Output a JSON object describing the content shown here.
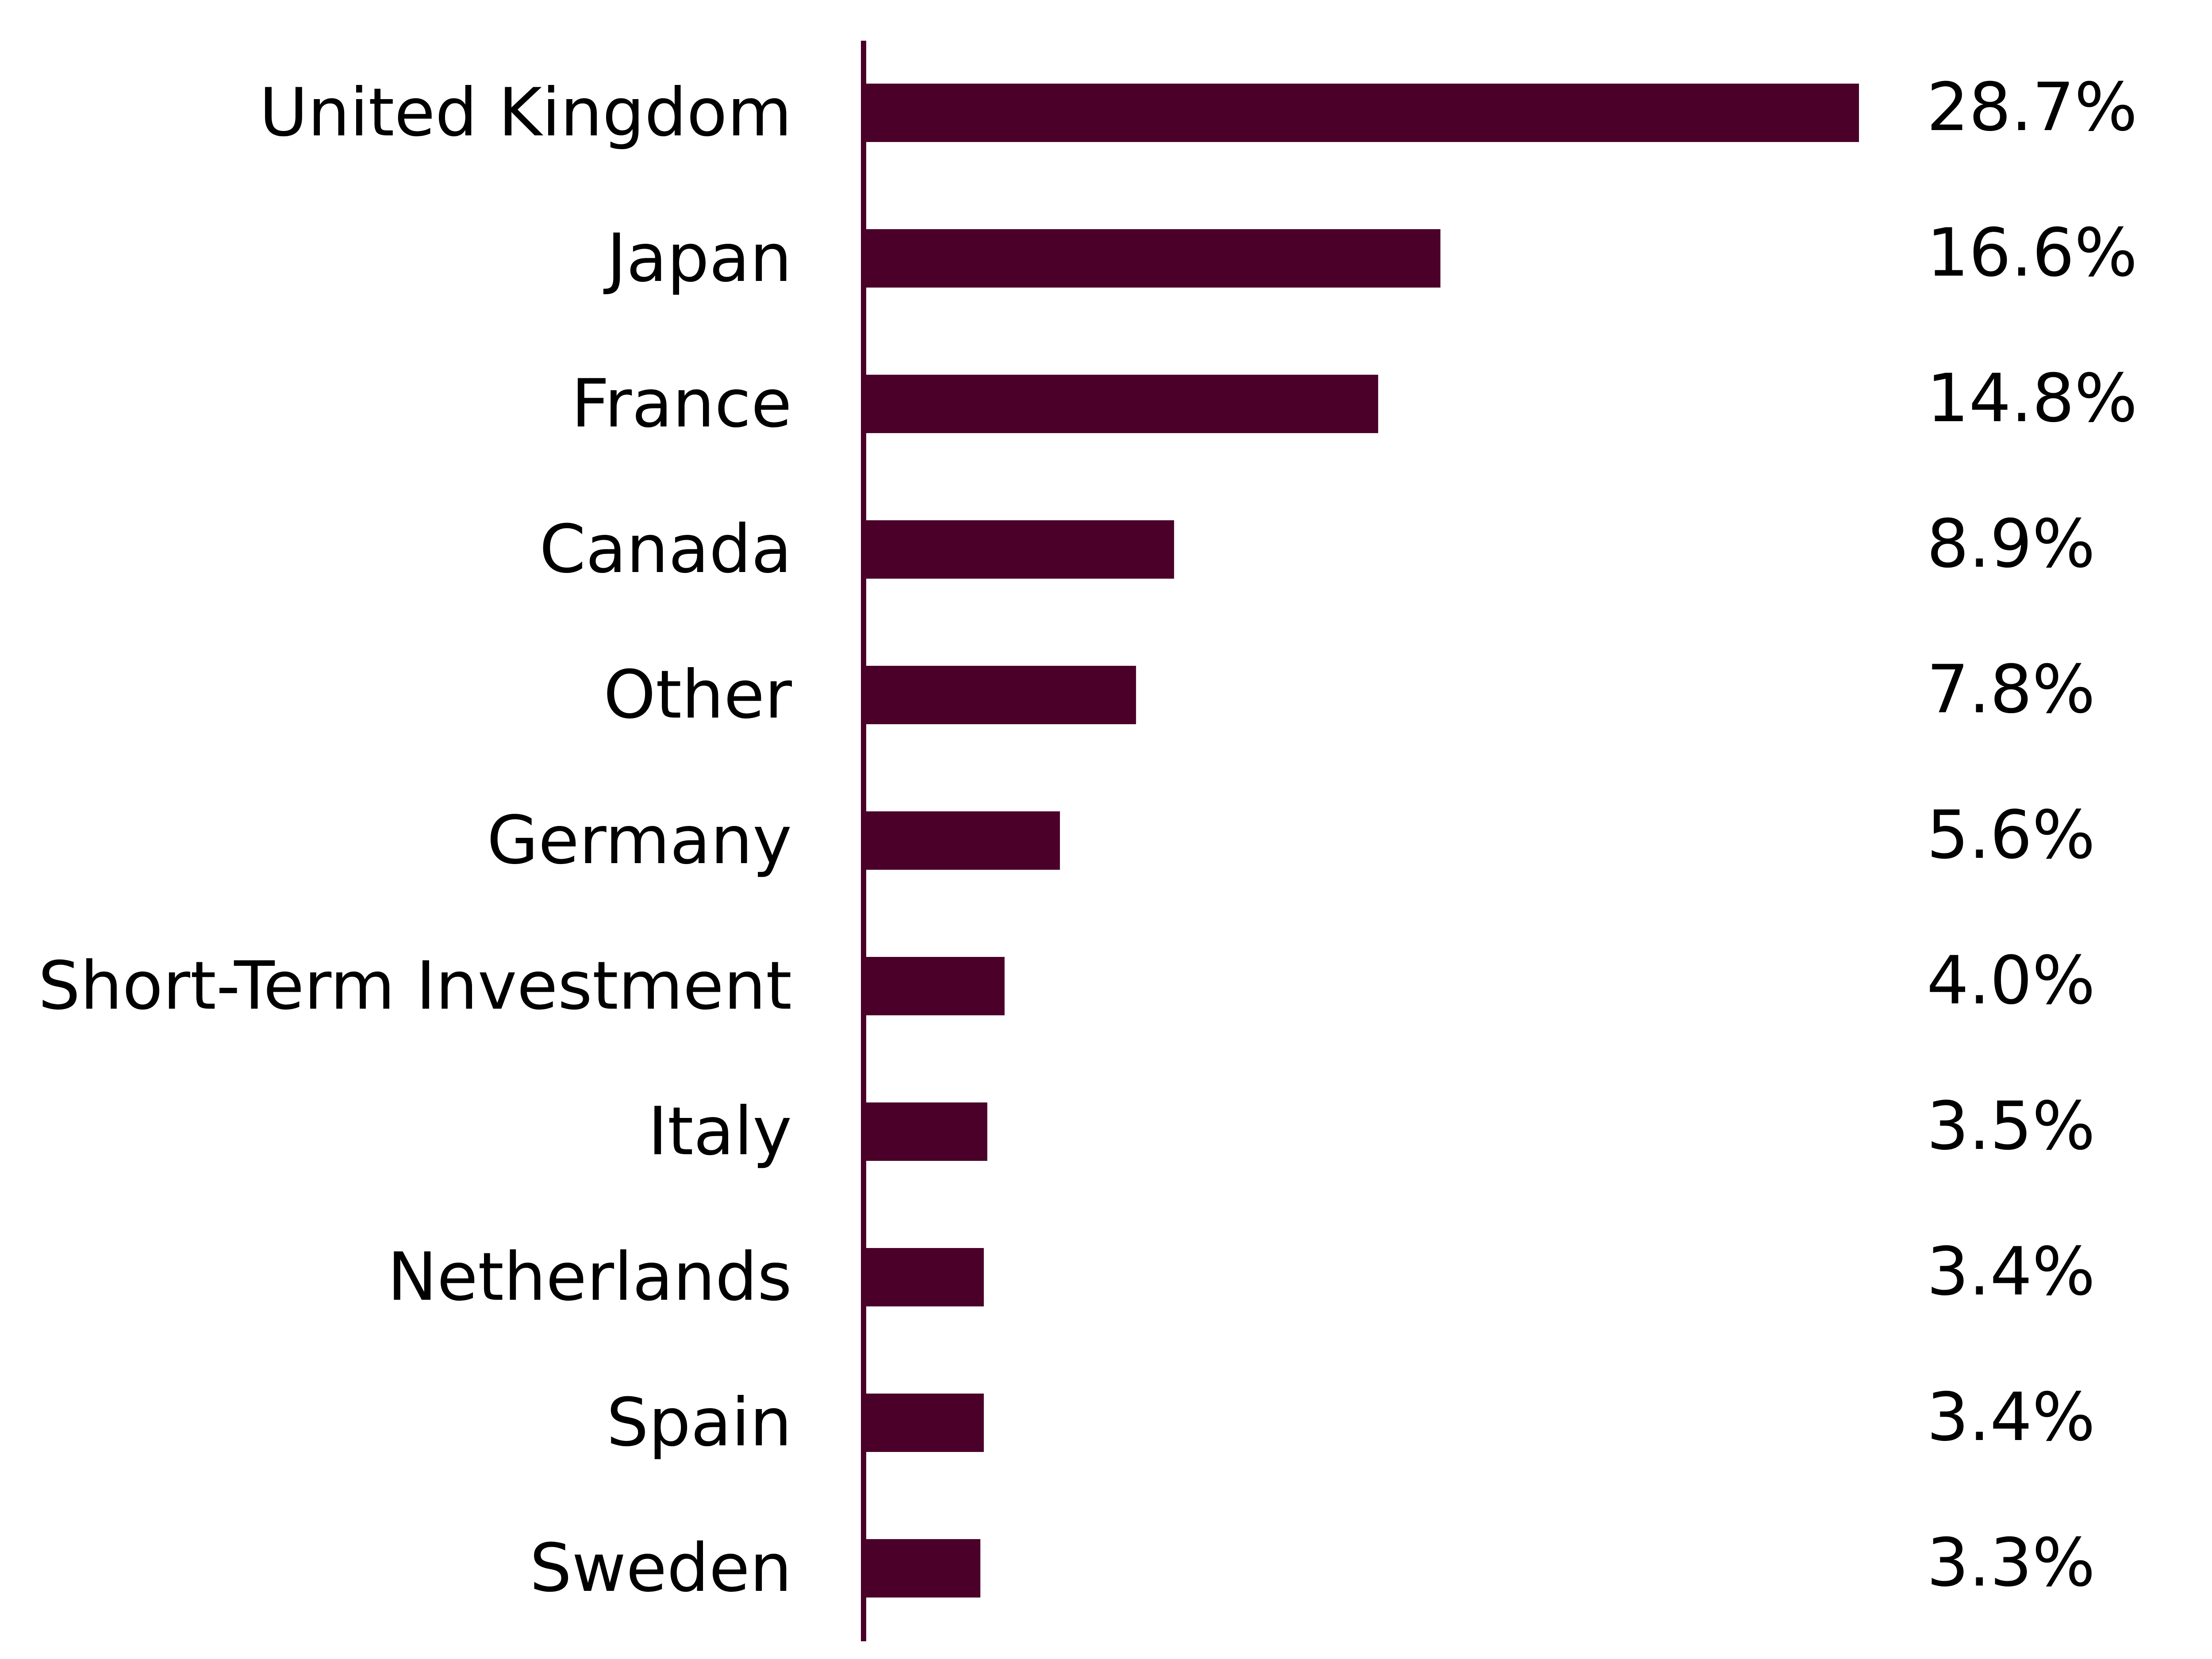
{
  "chart_data": {
    "type": "bar",
    "orientation": "horizontal",
    "categories": [
      "United Kingdom",
      "Japan",
      "France",
      "Canada",
      "Other",
      "Germany",
      "Short-Term Investment",
      "Italy",
      "Netherlands",
      "Spain",
      "Sweden"
    ],
    "values": [
      28.7,
      16.6,
      14.8,
      8.9,
      7.8,
      5.6,
      4.0,
      3.5,
      3.4,
      3.4,
      3.3
    ],
    "value_labels": [
      "28.7%",
      "16.6%",
      "14.8%",
      "8.9%",
      "7.8%",
      "5.6%",
      "4.0%",
      "3.5%",
      "3.4%",
      "3.4%",
      "3.3%"
    ],
    "unit": "%",
    "title": "",
    "xlabel": "",
    "ylabel": "",
    "xlim": [
      0,
      28.7
    ],
    "grid": false,
    "legend": "none",
    "bar_color": "#4a0029",
    "axis_color": "#4a0029"
  }
}
